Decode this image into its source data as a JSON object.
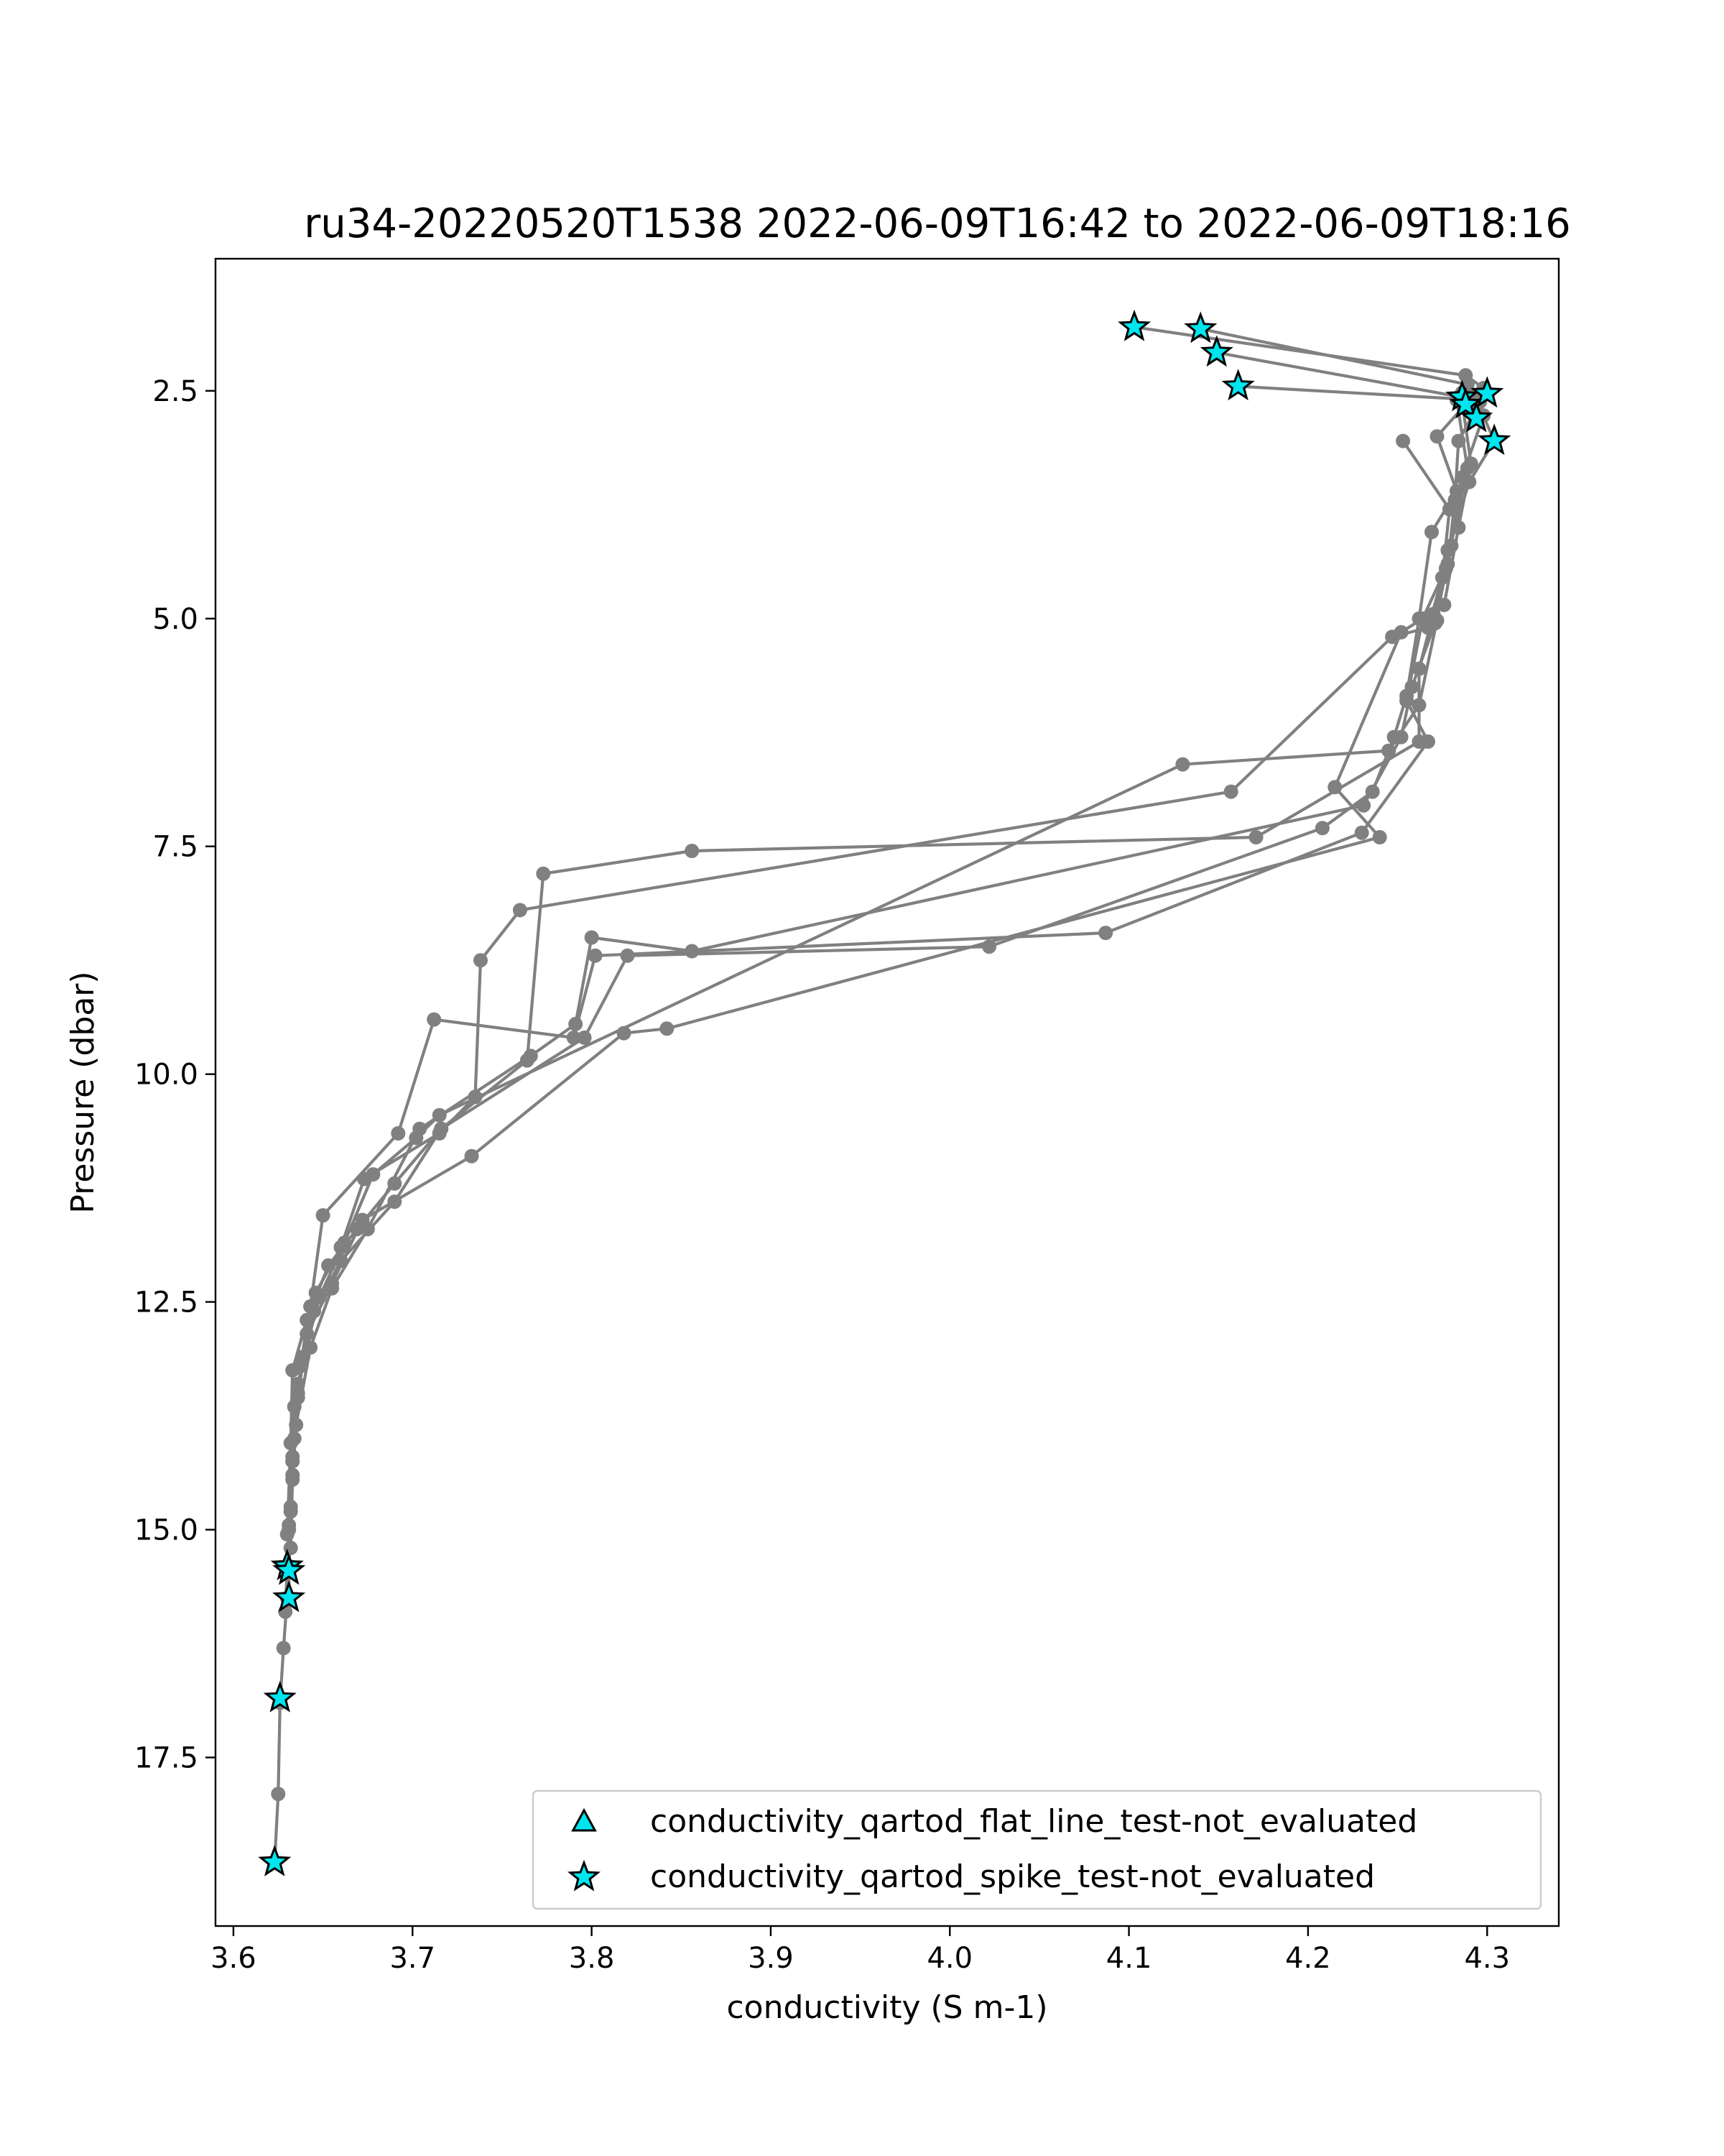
{
  "chart_data": {
    "type": "scatter",
    "title": "ru34-20220520T1538 2022-06-09T16:42 to 2022-06-09T18:16",
    "xlabel": "conductivity (S m-1)",
    "ylabel": "Pressure (dbar)",
    "xlim": [
      3.59,
      4.34
    ],
    "ylim": [
      19.35,
      1.05
    ],
    "y_inverted": true,
    "xticks": [
      3.6,
      3.7,
      3.8,
      3.9,
      4.0,
      4.1,
      4.2,
      4.3
    ],
    "xtick_labels": [
      "3.6",
      "3.7",
      "3.8",
      "3.9",
      "4.0",
      "4.1",
      "4.2",
      "4.3"
    ],
    "yticks": [
      2.5,
      5.0,
      7.5,
      10.0,
      12.5,
      15.0,
      17.5
    ],
    "ytick_labels": [
      "2.5",
      "5.0",
      "7.5",
      "10.0",
      "12.5",
      "15.0",
      "17.5"
    ],
    "grid": false,
    "legend_position": "lower-right",
    "colors": {
      "profile_line": "#808080",
      "marker_fill": "#00e5ee",
      "marker_edge": "#000000"
    },
    "series": [
      {
        "name": "profile",
        "style": "line-markers",
        "points": [
          [
            4.103,
            1.8
          ],
          [
            4.288,
            2.33
          ],
          [
            4.298,
            2.47
          ],
          [
            4.286,
            2.52
          ],
          [
            4.292,
            2.56
          ],
          [
            4.272,
            3.0
          ],
          [
            4.283,
            3.6
          ],
          [
            4.269,
            4.05
          ],
          [
            4.262,
            5.0
          ],
          [
            4.255,
            5.85
          ],
          [
            4.248,
            6.3
          ],
          [
            4.236,
            6.9
          ],
          [
            4.208,
            7.3
          ],
          [
            4.022,
            8.6
          ],
          [
            3.82,
            8.7
          ],
          [
            3.796,
            9.6
          ],
          [
            3.716,
            10.6
          ],
          [
            3.69,
            11.4
          ],
          [
            3.66,
            12.05
          ],
          [
            3.645,
            12.6
          ],
          [
            3.636,
            13.4
          ],
          [
            3.633,
            14.2
          ],
          [
            3.631,
            15.0
          ],
          [
            3.63,
            15.4
          ]
        ]
      },
      {
        "name": "profile",
        "style": "line-markers",
        "points": [
          [
            4.14,
            1.82
          ],
          [
            4.289,
            2.43
          ],
          [
            4.296,
            2.62
          ],
          [
            4.284,
            3.05
          ],
          [
            4.282,
            3.7
          ],
          [
            4.278,
            4.4
          ],
          [
            4.27,
            4.95
          ],
          [
            4.262,
            5.55
          ],
          [
            4.262,
            6.35
          ],
          [
            4.171,
            7.4
          ],
          [
            3.856,
            7.55
          ],
          [
            3.773,
            7.8
          ],
          [
            3.764,
            9.85
          ],
          [
            3.716,
            10.6
          ],
          [
            3.69,
            11.2
          ],
          [
            3.669,
            11.7
          ],
          [
            3.653,
            12.1
          ],
          [
            3.641,
            12.7
          ],
          [
            3.636,
            13.5
          ],
          [
            3.633,
            14.4
          ],
          [
            3.631,
            15.4
          ],
          [
            3.63,
            15.75
          ],
          [
            3.628,
            16.3
          ],
          [
            3.626,
            16.9
          ],
          [
            3.625,
            17.9
          ],
          [
            3.623,
            18.65
          ]
        ]
      },
      {
        "name": "profile",
        "style": "line-markers",
        "points": [
          [
            4.149,
            2.08
          ],
          [
            4.286,
            2.57
          ],
          [
            4.298,
            2.77
          ],
          [
            4.286,
            3.45
          ],
          [
            4.28,
            4.2
          ],
          [
            4.271,
            5.05
          ],
          [
            4.258,
            5.75
          ],
          [
            4.252,
            6.3
          ],
          [
            4.231,
            7.05
          ],
          [
            3.856,
            8.65
          ],
          [
            3.8,
            8.5
          ],
          [
            3.791,
            9.45
          ],
          [
            3.766,
            9.8
          ],
          [
            3.704,
            10.6
          ],
          [
            3.675,
            11.7
          ],
          [
            3.655,
            12.35
          ],
          [
            3.643,
            13.0
          ],
          [
            3.635,
            13.85
          ],
          [
            3.632,
            14.75
          ],
          [
            3.631,
            15.45
          ],
          [
            3.631,
            15.75
          ]
        ]
      },
      {
        "name": "profile",
        "style": "line-markers",
        "points": [
          [
            4.161,
            2.45
          ],
          [
            4.294,
            2.6
          ],
          [
            4.304,
            3.05
          ],
          [
            4.29,
            3.5
          ],
          [
            4.278,
            4.25
          ],
          [
            4.272,
            5.02
          ],
          [
            4.262,
            5.95
          ],
          [
            4.245,
            6.45
          ],
          [
            4.13,
            6.6
          ],
          [
            3.715,
            10.45
          ],
          [
            3.702,
            10.7
          ],
          [
            3.678,
            11.1
          ],
          [
            3.662,
            11.85
          ],
          [
            3.648,
            12.45
          ],
          [
            3.638,
            13.2
          ],
          [
            3.634,
            14.0
          ],
          [
            3.632,
            14.8
          ],
          [
            3.631,
            15.45
          ]
        ]
      },
      {
        "name": "profile",
        "style": "line-markers",
        "points": [
          [
            4.253,
            3.05
          ],
          [
            4.279,
            3.8
          ],
          [
            4.275,
            4.55
          ],
          [
            4.267,
            5.1
          ],
          [
            4.247,
            5.2
          ],
          [
            4.157,
            6.9
          ],
          [
            3.76,
            8.2
          ],
          [
            3.738,
            8.75
          ],
          [
            3.735,
            10.25
          ],
          [
            3.715,
            10.65
          ],
          [
            3.673,
            11.15
          ],
          [
            3.66,
            11.9
          ],
          [
            3.646,
            12.4
          ],
          [
            3.639,
            13.1
          ],
          [
            3.634,
            13.65
          ],
          [
            3.633,
            14.45
          ],
          [
            3.632,
            15.2
          ]
        ]
      },
      {
        "name": "profile",
        "style": "line-markers",
        "points": [
          [
            4.286,
            2.62
          ],
          [
            4.291,
            3.3
          ],
          [
            4.284,
            4.0
          ],
          [
            4.276,
            4.85
          ],
          [
            4.252,
            5.15
          ],
          [
            4.215,
            6.85
          ],
          [
            4.24,
            7.4
          ],
          [
            3.842,
            9.5
          ],
          [
            3.818,
            9.55
          ],
          [
            3.733,
            10.9
          ],
          [
            3.672,
            11.6
          ],
          [
            3.655,
            12.3
          ],
          [
            3.641,
            12.85
          ],
          [
            3.636,
            13.55
          ],
          [
            3.633,
            14.25
          ],
          [
            3.631,
            14.95
          ],
          [
            3.629,
            15.9
          ]
        ]
      },
      {
        "name": "profile",
        "style": "line-markers",
        "points": [
          [
            4.283,
            2.6
          ],
          [
            4.289,
            3.35
          ],
          [
            4.277,
            4.45
          ],
          [
            4.264,
            5.0
          ],
          [
            4.255,
            5.9
          ],
          [
            4.267,
            6.35
          ],
          [
            4.23,
            7.35
          ],
          [
            4.087,
            8.45
          ],
          [
            3.802,
            8.7
          ],
          [
            3.79,
            9.6
          ],
          [
            3.712,
            9.4
          ],
          [
            3.692,
            10.65
          ],
          [
            3.65,
            11.55
          ],
          [
            3.643,
            12.55
          ],
          [
            3.633,
            13.25
          ],
          [
            3.632,
            14.05
          ],
          [
            3.63,
            15.05
          ]
        ]
      }
    ],
    "markers": [
      {
        "name": "conductivity_qartod_flat_line_test-not_evaluated",
        "marker": "triangle",
        "points": []
      },
      {
        "name": "conductivity_qartod_spike_test-not_evaluated",
        "marker": "star",
        "points": [
          [
            4.103,
            1.8
          ],
          [
            4.14,
            1.82
          ],
          [
            4.149,
            2.08
          ],
          [
            4.161,
            2.45
          ],
          [
            4.3,
            2.53
          ],
          [
            4.286,
            2.57
          ],
          [
            4.288,
            2.65
          ],
          [
            4.294,
            2.8
          ],
          [
            4.304,
            3.05
          ],
          [
            3.63,
            15.4
          ],
          [
            3.631,
            15.45
          ],
          [
            3.631,
            15.75
          ],
          [
            3.626,
            16.85
          ],
          [
            3.623,
            18.65
          ]
        ]
      }
    ],
    "legend": [
      {
        "label": "conductivity_qartod_flat_line_test-not_evaluated",
        "marker": "triangle"
      },
      {
        "label": "conductivity_qartod_spike_test-not_evaluated",
        "marker": "star"
      }
    ]
  }
}
